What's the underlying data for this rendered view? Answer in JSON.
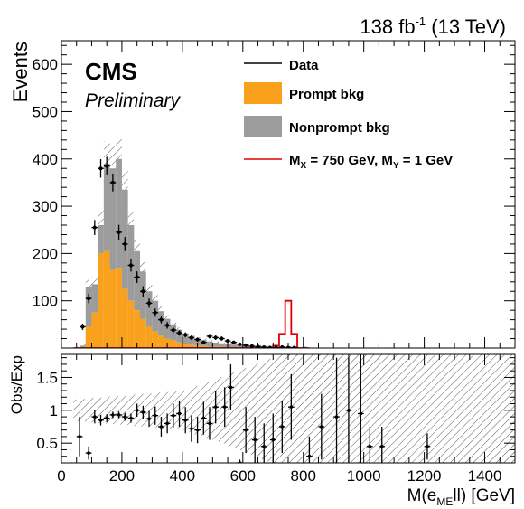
{
  "header": {
    "lumi": "138 fb",
    "lumi_exp": "-1",
    "energy": " (13 TeV)",
    "experiment": "CMS",
    "status": "Preliminary"
  },
  "legend": {
    "data": "Data",
    "prompt": "Prompt bkg",
    "nonprompt": "Nonprompt bkg",
    "signal_mx": "M",
    "signal_mx_sub": "X",
    "signal_mx_val": " = 750 GeV, M",
    "signal_my_sub": "Y",
    "signal_my_val": " = 1 GeV"
  },
  "colors": {
    "prompt": "#f9a11d",
    "nonprompt": "#9c9c9c",
    "signal": "#e00000",
    "data": "#000000"
  },
  "chart_data": [
    {
      "type": "bar",
      "panel": "main",
      "stacked": true,
      "ylabel": "Events",
      "xlim": [
        0,
        1500
      ],
      "ylim": [
        0,
        650
      ],
      "yticks": [
        100,
        200,
        300,
        400,
        500,
        600
      ],
      "bin_width": 20,
      "x": [
        40,
        60,
        80,
        100,
        120,
        140,
        160,
        180,
        200,
        220,
        240,
        260,
        280,
        300,
        320,
        340,
        360,
        380,
        400,
        420,
        440,
        460,
        480,
        500,
        520,
        540,
        560,
        580,
        600,
        620,
        640,
        660,
        680,
        700,
        720,
        740,
        760,
        780,
        800
      ],
      "series": [
        {
          "name": "Prompt bkg",
          "values": [
            0,
            0,
            45,
            75,
            200,
            205,
            165,
            170,
            125,
            100,
            80,
            62,
            45,
            35,
            26,
            20,
            16,
            12,
            9,
            7,
            5,
            4,
            3,
            2.5,
            2,
            1.5,
            1.2,
            1,
            0.8,
            0.6,
            0.5,
            0.4,
            0.3,
            0.3,
            0.2,
            0.2,
            0.1,
            0.1,
            0.1
          ]
        },
        {
          "name": "Nonprompt bkg",
          "values": [
            0,
            5,
            85,
            60,
            60,
            185,
            215,
            230,
            210,
            160,
            125,
            100,
            75,
            65,
            52,
            42,
            34,
            27,
            22,
            18,
            15,
            13,
            11,
            9,
            8,
            7,
            6,
            5,
            4,
            3.5,
            3,
            2.5,
            2,
            1.8,
            1.5,
            1.2,
            1,
            0.8,
            0.7
          ]
        },
        {
          "name": "M_X = 750 GeV, M_Y = 1 GeV",
          "values": [
            0,
            0,
            0,
            0,
            0,
            0,
            0,
            0,
            0,
            0,
            0,
            0,
            0,
            0,
            0,
            0,
            0,
            0,
            0,
            0,
            0,
            0,
            0,
            0,
            0,
            0,
            0,
            0,
            0,
            0,
            0,
            0,
            0,
            5,
            30,
            100,
            30,
            0,
            0
          ]
        }
      ],
      "data_points": {
        "name": "Data",
        "x": [
          70,
          90,
          110,
          130,
          150,
          170,
          190,
          210,
          230,
          250,
          270,
          290,
          310,
          330,
          350,
          370,
          390,
          410,
          430,
          450,
          470,
          490,
          510,
          530,
          550,
          570,
          590,
          610,
          630,
          650,
          670,
          690,
          710,
          730,
          750,
          770
        ],
        "y": [
          45,
          105,
          255,
          380,
          385,
          350,
          245,
          220,
          175,
          150,
          120,
          95,
          75,
          60,
          48,
          38,
          32,
          28,
          22,
          18,
          12,
          25,
          22,
          20,
          15,
          12,
          8,
          6,
          4,
          3,
          2,
          1,
          1,
          2,
          1,
          1
        ]
      }
    },
    {
      "type": "scatter",
      "panel": "ratio",
      "ylabel": "Obs/Exp",
      "xlabel": "M(e",
      "xlabel_sub": "ME",
      "xlabel_end": "ll) [GeV]",
      "xlim": [
        0,
        1500
      ],
      "ylim": [
        0.2,
        1.85
      ],
      "yticks": [
        0.5,
        1,
        1.5
      ],
      "xticks": [
        0,
        200,
        400,
        600,
        800,
        1000,
        1200,
        1400
      ],
      "points": [
        {
          "x": 60,
          "y": 0.6,
          "err": 0.3
        },
        {
          "x": 90,
          "y": 0.35,
          "err": 0.1
        },
        {
          "x": 110,
          "y": 0.9,
          "err": 0.1
        },
        {
          "x": 130,
          "y": 0.85,
          "err": 0.08
        },
        {
          "x": 150,
          "y": 0.88,
          "err": 0.06
        },
        {
          "x": 170,
          "y": 0.93,
          "err": 0.05
        },
        {
          "x": 190,
          "y": 0.93,
          "err": 0.05
        },
        {
          "x": 210,
          "y": 0.9,
          "err": 0.06
        },
        {
          "x": 230,
          "y": 0.88,
          "err": 0.07
        },
        {
          "x": 250,
          "y": 1.0,
          "err": 0.1
        },
        {
          "x": 270,
          "y": 0.97,
          "err": 0.1
        },
        {
          "x": 290,
          "y": 0.87,
          "err": 0.12
        },
        {
          "x": 310,
          "y": 0.92,
          "err": 0.14
        },
        {
          "x": 330,
          "y": 0.75,
          "err": 0.15
        },
        {
          "x": 350,
          "y": 0.8,
          "err": 0.15
        },
        {
          "x": 370,
          "y": 0.92,
          "err": 0.18
        },
        {
          "x": 390,
          "y": 0.95,
          "err": 0.2
        },
        {
          "x": 410,
          "y": 0.85,
          "err": 0.2
        },
        {
          "x": 430,
          "y": 0.72,
          "err": 0.2
        },
        {
          "x": 450,
          "y": 0.7,
          "err": 0.2
        },
        {
          "x": 470,
          "y": 0.88,
          "err": 0.25
        },
        {
          "x": 490,
          "y": 0.8,
          "err": 0.25
        },
        {
          "x": 510,
          "y": 1.05,
          "err": 0.25
        },
        {
          "x": 540,
          "y": 1.05,
          "err": 0.3
        },
        {
          "x": 560,
          "y": 1.35,
          "err": 0.35
        },
        {
          "x": 590,
          "y": 0.2,
          "err": 0.05
        },
        {
          "x": 610,
          "y": 0.7,
          "err": 0.35
        },
        {
          "x": 640,
          "y": 0.55,
          "err": 0.35
        },
        {
          "x": 670,
          "y": 0.45,
          "err": 0.35
        },
        {
          "x": 700,
          "y": 0.55,
          "err": 0.4
        },
        {
          "x": 730,
          "y": 0.75,
          "err": 0.4
        },
        {
          "x": 760,
          "y": 1.05,
          "err": 0.5
        },
        {
          "x": 820,
          "y": 0.3,
          "err": 0.3
        },
        {
          "x": 860,
          "y": 0.75,
          "err": 0.5
        },
        {
          "x": 910,
          "y": 0.9,
          "err": 0.9
        },
        {
          "x": 950,
          "y": 1.0,
          "err": 0.8
        },
        {
          "x": 990,
          "y": 0.95,
          "err": 0.9
        },
        {
          "x": 1020,
          "y": 0.45,
          "err": 0.3
        },
        {
          "x": 1060,
          "y": 0.45,
          "err": 0.3
        },
        {
          "x": 1210,
          "y": 0.45,
          "err": 0.2
        }
      ]
    }
  ]
}
